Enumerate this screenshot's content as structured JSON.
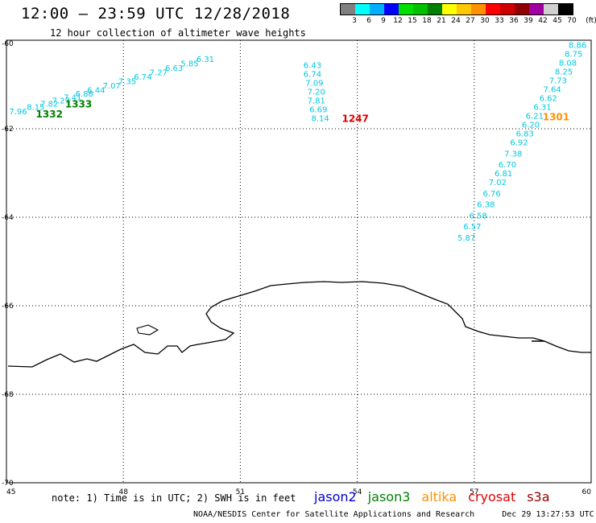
{
  "title": "12:00 — 23:59 UTC 12/28/2018",
  "subtitle": "12 hour collection of altimeter wave heights",
  "legend": {
    "colors": [
      "#808080",
      "#00ffff",
      "#00b0ff",
      "#0000ff",
      "#00e000",
      "#00c000",
      "#008000",
      "#ffff00",
      "#ffc800",
      "#ff9000",
      "#ff0000",
      "#d00000",
      "#900000",
      "#a000a0",
      "#d0d0d0",
      "#000000"
    ],
    "labels": [
      "3",
      "6",
      "9",
      "12",
      "15",
      "18",
      "21",
      "24",
      "27",
      "30",
      "33",
      "36",
      "39",
      "42",
      "45",
      "70",
      "(ft)"
    ]
  },
  "axes": {
    "lon_labels": [
      "45",
      "48",
      "51",
      "54",
      "57",
      "60"
    ],
    "lat_labels": [
      "-60",
      "-62",
      "-64",
      "-66",
      "-68",
      "-70"
    ]
  },
  "tracks": [
    {
      "color": "#00c8e0",
      "points": [
        {
          "lon": 45.3,
          "lat": -61.6,
          "v": "7.96"
        },
        {
          "lon": 45.75,
          "lat": -61.5,
          "v": "8.15"
        },
        {
          "lon": 46.1,
          "lat": -61.43,
          "v": "7.82"
        },
        {
          "lon": 46.4,
          "lat": -61.35,
          "v": "7.27"
        },
        {
          "lon": 46.7,
          "lat": -61.28,
          "v": "7.41"
        },
        {
          "lon": 47.0,
          "lat": -61.2,
          "v": "6.88"
        },
        {
          "lon": 47.3,
          "lat": -61.12,
          "v": "6.44"
        },
        {
          "lon": 47.7,
          "lat": -61.02,
          "v": "7.07"
        },
        {
          "lon": 48.1,
          "lat": -60.92,
          "v": "7.35"
        },
        {
          "lon": 48.5,
          "lat": -60.82,
          "v": "6.74"
        },
        {
          "lon": 48.9,
          "lat": -60.72,
          "v": "7.27"
        },
        {
          "lon": 49.3,
          "lat": -60.62,
          "v": "6.63"
        },
        {
          "lon": 49.7,
          "lat": -60.52,
          "v": "5.85"
        },
        {
          "lon": 50.1,
          "lat": -60.42,
          "v": "6.31"
        }
      ],
      "time_labels": [
        {
          "lon": 46.85,
          "lat": -61.43,
          "text": "1333",
          "color": "#008000"
        },
        {
          "lon": 46.1,
          "lat": -61.65,
          "text": "1332",
          "color": "#008000"
        }
      ]
    },
    {
      "color": "#00c8e0",
      "points": [
        {
          "lon": 52.85,
          "lat": -60.55,
          "v": "6.43"
        },
        {
          "lon": 52.85,
          "lat": -60.75,
          "v": "6.74"
        },
        {
          "lon": 52.9,
          "lat": -60.95,
          "v": "7.09"
        },
        {
          "lon": 52.95,
          "lat": -61.15,
          "v": "7.20"
        },
        {
          "lon": 52.95,
          "lat": -61.35,
          "v": "7.81"
        },
        {
          "lon": 53.0,
          "lat": -61.55,
          "v": "6.69"
        },
        {
          "lon": 53.05,
          "lat": -61.75,
          "v": "8.14"
        }
      ],
      "time_labels": [
        {
          "lon": 53.95,
          "lat": -61.75,
          "text": "1247",
          "color": "#e00000"
        }
      ]
    },
    {
      "color": "#00c8e0",
      "points": [
        {
          "lon": 59.65,
          "lat": -60.1,
          "v": "8.86"
        },
        {
          "lon": 59.55,
          "lat": -60.3,
          "v": "8.75"
        },
        {
          "lon": 59.4,
          "lat": -60.5,
          "v": "8.08"
        },
        {
          "lon": 59.3,
          "lat": -60.7,
          "v": "8.25"
        },
        {
          "lon": 59.15,
          "lat": -60.9,
          "v": "7.73"
        },
        {
          "lon": 59.0,
          "lat": -61.1,
          "v": "7.64"
        },
        {
          "lon": 58.9,
          "lat": -61.3,
          "v": "6.62"
        },
        {
          "lon": 58.75,
          "lat": -61.5,
          "v": "6.31"
        },
        {
          "lon": 58.55,
          "lat": -61.7,
          "v": "6.21"
        },
        {
          "lon": 58.45,
          "lat": -61.9,
          "v": "6.20"
        },
        {
          "lon": 58.3,
          "lat": -62.1,
          "v": "6.83"
        },
        {
          "lon": 58.15,
          "lat": -62.3,
          "v": "6.92"
        },
        {
          "lon": 58.0,
          "lat": -62.55,
          "v": "7.38"
        },
        {
          "lon": 57.85,
          "lat": -62.8,
          "v": "6.70"
        },
        {
          "lon": 57.75,
          "lat": -63.0,
          "v": "6.81"
        },
        {
          "lon": 57.6,
          "lat": -63.2,
          "v": "7.02"
        },
        {
          "lon": 57.45,
          "lat": -63.45,
          "v": "6.76"
        },
        {
          "lon": 57.3,
          "lat": -63.7,
          "v": "6.38"
        },
        {
          "lon": 57.1,
          "lat": -63.95,
          "v": "6.58"
        },
        {
          "lon": 56.95,
          "lat": -64.2,
          "v": "6.57"
        },
        {
          "lon": 56.8,
          "lat": -64.45,
          "v": "5.87"
        }
      ],
      "time_labels": [
        {
          "lon": 59.1,
          "lat": -61.72,
          "text": "1301",
          "color": "#ff9000"
        }
      ]
    }
  ],
  "note": "note: 1) Time is in UTC; 2) SWH is in feet",
  "satellites": [
    {
      "name": "jason2",
      "color": "#0000d0"
    },
    {
      "name": "jason3",
      "color": "#008000"
    },
    {
      "name": "altika",
      "color": "#ff9000"
    },
    {
      "name": "cryosat",
      "color": "#e00000"
    },
    {
      "name": "s3a",
      "color": "#900000"
    }
  ],
  "credit": "NOAA/NESDIS Center for Satellite Applications and Research",
  "timestamp": "Dec 29 13:27:53 UTC 2018"
}
